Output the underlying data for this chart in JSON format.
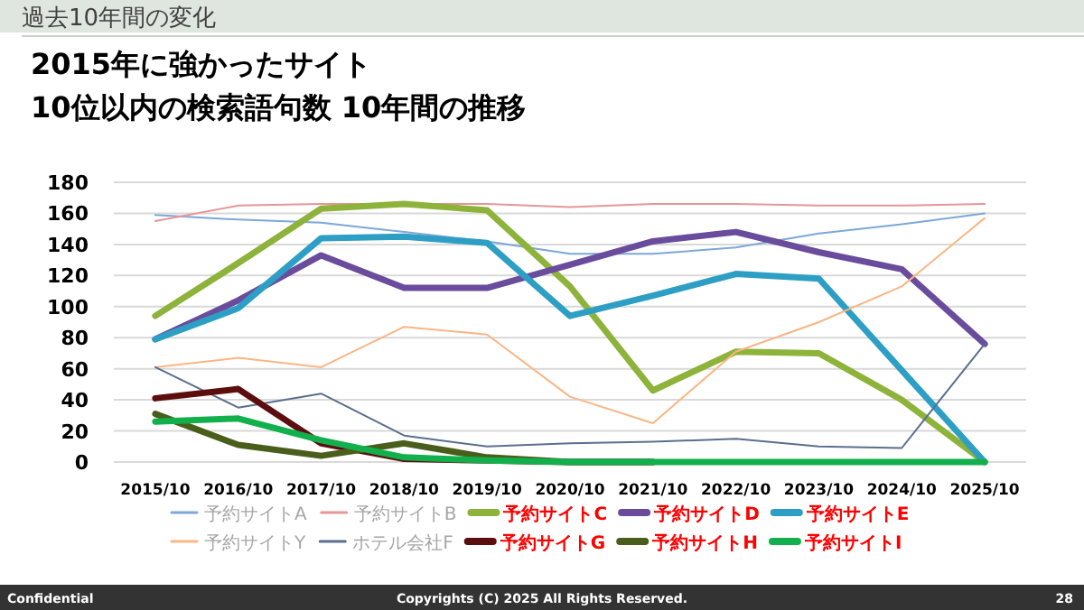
{
  "chart_data": {
    "type": "line",
    "title": "過去10年間の変化",
    "subtitle": "2015年に強かったサイト\n10位以内の検索語句数 10年間の推移",
    "categories": [
      "2015/10",
      "2016/10",
      "2017/10",
      "2018/10",
      "2019/10",
      "2020/10",
      "2021/10",
      "2022/10",
      "2023/10",
      "2024/10",
      "2025/10"
    ],
    "series": [
      {
        "name": "予約サイトA",
        "color": "#7da7d9",
        "values": [
          159,
          156,
          154,
          148,
          142,
          134,
          134,
          138,
          147,
          153,
          160
        ]
      },
      {
        "name": "予約サイトB",
        "color": "#e6969a",
        "values": [
          155,
          165,
          166,
          166,
          166,
          164,
          166,
          166,
          165,
          165,
          166
        ]
      },
      {
        "name": "予約サイトC",
        "color": "#8db33b",
        "values": [
          94,
          128,
          163,
          166,
          162,
          113,
          46,
          71,
          70,
          40,
          0
        ]
      },
      {
        "name": "予約サイトD",
        "color": "#6a4c9c",
        "values": [
          79,
          104,
          133,
          112,
          112,
          127,
          142,
          148,
          135,
          124,
          76
        ]
      },
      {
        "name": "予約サイトE",
        "color": "#2e9fc4",
        "values": [
          79,
          99,
          144,
          145,
          141,
          94,
          107,
          121,
          118,
          59,
          0
        ]
      },
      {
        "name": "予約サイトY",
        "color": "#fbb584",
        "values": [
          61,
          67,
          61,
          87,
          82,
          42,
          25,
          71,
          90,
          113,
          157
        ]
      },
      {
        "name": "ホテル会社F",
        "color": "#5a6f8f",
        "values": [
          61,
          35,
          44,
          17,
          10,
          12,
          13,
          15,
          10,
          9,
          76
        ]
      },
      {
        "name": "予約サイトG",
        "color": "#5c0e0e",
        "values": [
          41,
          47,
          12,
          2,
          1,
          0,
          0,
          null,
          null,
          null,
          null
        ]
      },
      {
        "name": "予約サイトH",
        "color": "#4a5e1c",
        "values": [
          31,
          11,
          4,
          12,
          3,
          0,
          0,
          null,
          null,
          null,
          null
        ]
      },
      {
        "name": "予約サイトI",
        "color": "#12b04c",
        "values": [
          26,
          28,
          14,
          3,
          1,
          0,
          0,
          0,
          0,
          0,
          0
        ]
      }
    ],
    "ylim": [
      0,
      180
    ],
    "yticks": [
      0,
      20,
      40,
      60,
      80,
      100,
      120,
      140,
      160,
      180
    ],
    "grid": "y",
    "legend": "bottom",
    "marker": "none",
    "line_style": "solid",
    "annotations": [
      "Confidential",
      "Copyrights (C) 2025 All Rights Reserved.",
      "28"
    ]
  }
}
